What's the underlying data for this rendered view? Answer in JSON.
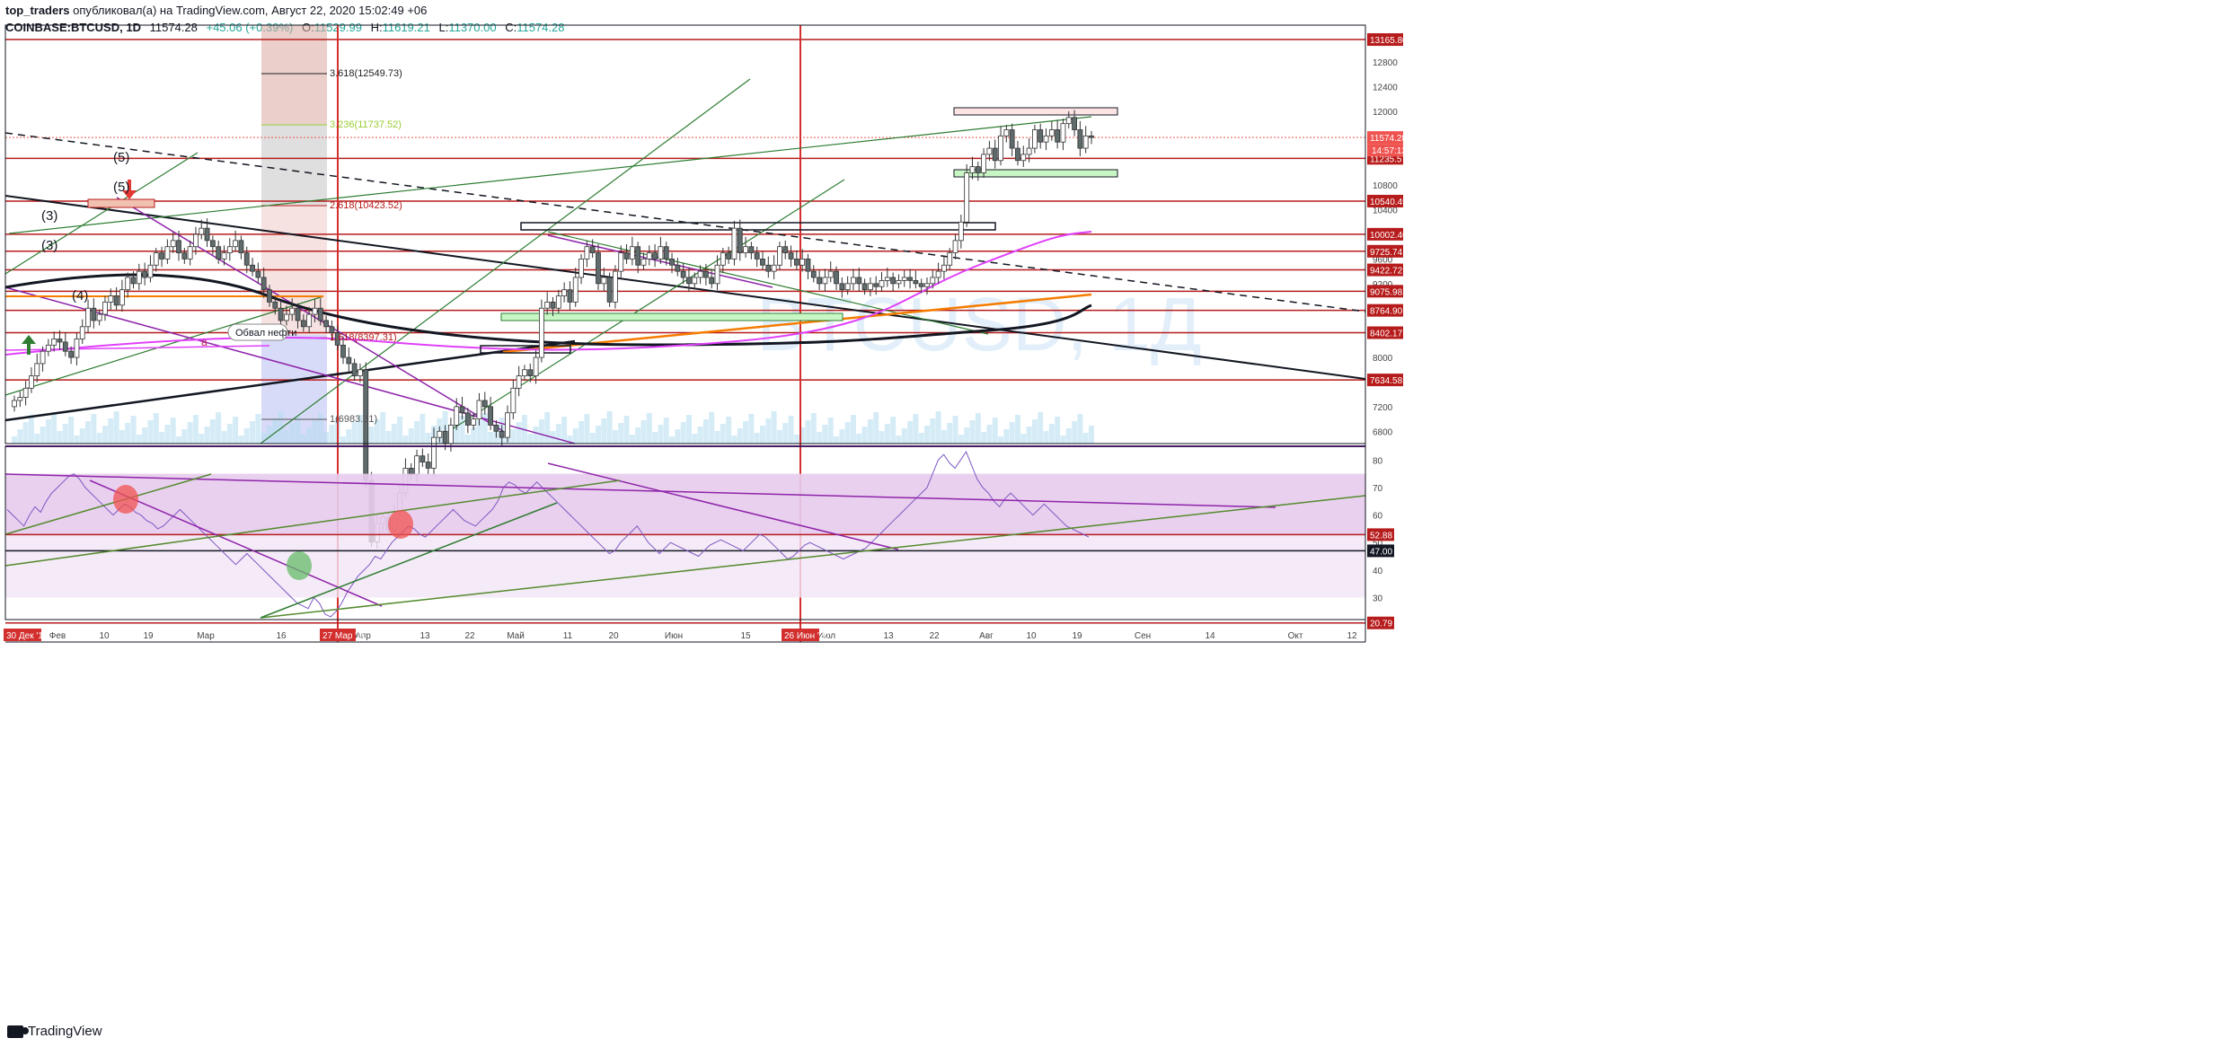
{
  "header": {
    "author": "top_traders",
    "published": "опубликовал(а) на TradingView.com, Август 22, 2020 15:02:49 +06",
    "symbol": "COINBASE:BTCUSD, 1D",
    "last": "11574.28",
    "change": "+45.06 (+0.39%)",
    "open_label": "O:",
    "open": "11529.99",
    "high_label": "H:",
    "high": "11619.21",
    "low_label": "L:",
    "low": "11370.00",
    "close_label": "C:",
    "close": "11574.28"
  },
  "watermark": "BTCUSD, 1Д",
  "footer": {
    "logo_text": "TradingView"
  },
  "colors": {
    "up": "#26a69a",
    "down": "#ef5350",
    "level": "#b71c1c",
    "accent": "#9c27b0"
  },
  "chart_data": [
    {
      "type": "candlestick",
      "title": "",
      "y_axis_ticks": [
        12800,
        12400,
        12000,
        11600,
        11200,
        10800,
        10400,
        10000,
        9600,
        9200,
        8800,
        8400,
        8000,
        7600,
        7200,
        6800
      ],
      "ylim": [
        6600,
        13400
      ],
      "x_axis_ticks": [
        "Фев",
        "10",
        "19",
        "Мар",
        "16",
        "Апр",
        "13",
        "22",
        "Май",
        "11",
        "20",
        "Июн",
        "15",
        "Июл",
        "13",
        "22",
        "Авг",
        "10",
        "19",
        "Сен",
        "14",
        "Окт",
        "12"
      ],
      "x_highlight_labels": [
        "30 Дек '19",
        "27 Мар '20",
        "26 Июн '20"
      ],
      "price_levels": [
        "13165.80",
        "11235.57",
        "10540.49",
        "10002.40",
        "9725.74",
        "9422.72",
        "9075.98",
        "8764.90",
        "8402.17",
        "7634.58"
      ],
      "current_price": "11574.28",
      "countdown": "14:57:13",
      "fib_labels": [
        "3.618(12549.73)",
        "3.236(11737.52)",
        "2.618(10423.52)",
        "1.618(8397.31)",
        "1(6983.31)"
      ],
      "annotations": [
        "(5)",
        "(5)",
        "(3)",
        "(3)",
        "(4)",
        "a",
        "Обвал нефти"
      ],
      "closes": [
        7300,
        7350,
        7500,
        7700,
        7900,
        8100,
        8200,
        8300,
        8250,
        8100,
        8000,
        8300,
        8500,
        8800,
        8600,
        8700,
        8900,
        9000,
        8850,
        9100,
        9300,
        9200,
        9400,
        9300,
        9500,
        9700,
        9600,
        9800,
        9900,
        9700,
        9600,
        9800,
        10000,
        10100,
        9900,
        9800,
        9600,
        9700,
        9800,
        9900,
        9700,
        9500,
        9400,
        9300,
        9100,
        8900,
        8800,
        8600,
        8700,
        8800,
        8600,
        8500,
        8700,
        8800,
        8600,
        8500,
        8400,
        8200,
        8000,
        7900,
        7700,
        7800,
        6000,
        5000,
        5300,
        5400,
        5200,
        5500,
        5800,
        6200,
        6100,
        6400,
        6300,
        6200,
        6700,
        6800,
        6600,
        6900,
        7200,
        7100,
        6900,
        7000,
        7300,
        7200,
        6900,
        6800,
        6700,
        7100,
        7500,
        7700,
        7800,
        7700,
        8000,
        8800,
        8900,
        8800,
        9000,
        9100,
        8900,
        9300,
        9600,
        9800,
        9700,
        9200,
        9300,
        8900,
        9400,
        9700,
        9600,
        9800,
        9500,
        9600,
        9700,
        9600,
        9800,
        9600,
        9500,
        9400,
        9300,
        9200,
        9300,
        9400,
        9300,
        9200,
        9500,
        9700,
        9600,
        10100,
        9700,
        9800,
        9700,
        9600,
        9500,
        9400,
        9500,
        9800,
        9700,
        9600,
        9500,
        9600,
        9400,
        9300,
        9200,
        9300,
        9400,
        9200,
        9100,
        9200,
        9300,
        9200,
        9100,
        9200,
        9150,
        9250,
        9300,
        9200,
        9250,
        9300,
        9250,
        9200,
        9150,
        9200,
        9300,
        9400,
        9500,
        9700,
        9900,
        10200,
        11000,
        11100,
        11000,
        11300,
        11400,
        11200,
        11600,
        11700,
        11400,
        11200,
        11300,
        11400,
        11700,
        11500,
        11600,
        11700,
        11500,
        11800,
        11900,
        11700,
        11400,
        11600,
        11574
      ]
    },
    {
      "type": "line",
      "title": "",
      "y_axis_ticks": [
        80,
        70,
        60,
        50,
        40,
        30
      ],
      "ylim": [
        22,
        85
      ],
      "levels": [
        "52.88",
        "47.00",
        "20.79"
      ],
      "values": [
        62,
        60,
        58,
        56,
        60,
        63,
        61,
        65,
        68,
        70,
        72,
        74,
        75,
        73,
        70,
        68,
        66,
        64,
        62,
        60,
        62,
        64,
        63,
        61,
        60,
        58,
        57,
        55,
        56,
        58,
        60,
        62,
        60,
        58,
        56,
        54,
        52,
        50,
        48,
        46,
        44,
        42,
        44,
        46,
        44,
        42,
        40,
        38,
        36,
        34,
        32,
        30,
        28,
        27,
        26,
        30,
        28,
        24,
        23,
        25,
        28,
        32,
        35,
        38,
        40,
        42,
        45,
        44,
        47,
        50,
        52,
        54,
        56,
        55,
        53,
        52,
        54,
        56,
        58,
        60,
        62,
        60,
        58,
        57,
        56,
        58,
        60,
        62,
        65,
        70,
        72,
        71,
        69,
        68,
        70,
        72,
        70,
        68,
        66,
        64,
        62,
        60,
        58,
        56,
        54,
        52,
        50,
        48,
        46,
        47,
        50,
        52,
        54,
        56,
        53,
        50,
        48,
        46,
        48,
        50,
        49,
        48,
        47,
        46,
        45,
        47,
        49,
        50,
        51,
        50,
        49,
        48,
        47,
        49,
        51,
        53,
        52,
        50,
        48,
        46,
        44,
        45,
        47,
        49,
        50,
        49,
        48,
        47,
        46,
        45,
        44,
        45,
        46,
        47,
        48,
        50,
        52,
        54,
        56,
        58,
        60,
        62,
        64,
        66,
        68,
        70,
        75,
        80,
        82,
        79,
        77,
        80,
        83,
        78,
        73,
        70,
        68,
        65,
        63,
        66,
        68,
        66,
        64,
        62,
        60,
        62,
        64,
        62,
        60,
        58,
        56,
        55,
        54,
        53,
        52
      ]
    }
  ]
}
